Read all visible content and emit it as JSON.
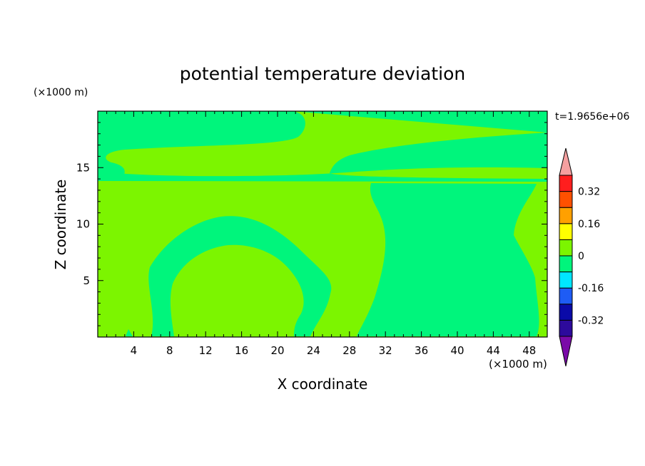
{
  "chart_data": {
    "type": "heatmap",
    "title": "potential temperature deviation",
    "xlabel": "X coordinate",
    "ylabel": "Z coordinate",
    "x_unit": "(×1000 m)",
    "y_unit": "(×1000 m)",
    "time_label": "t=1.9656e+06",
    "xlim": [
      0,
      50
    ],
    "ylim": [
      0,
      20
    ],
    "x_ticks": [
      "4",
      "8",
      "12",
      "16",
      "20",
      "24",
      "28",
      "32",
      "36",
      "40",
      "44",
      "48"
    ],
    "y_ticks": [
      "5",
      "10",
      "15"
    ],
    "x_tick_values": [
      4,
      8,
      12,
      16,
      20,
      24,
      28,
      32,
      36,
      40,
      44,
      48
    ],
    "y_tick_values": [
      5,
      10,
      15
    ],
    "colorbar": {
      "levels": [
        -0.4,
        -0.32,
        -0.24,
        -0.16,
        -0.08,
        0,
        0.08,
        0.16,
        0.24,
        0.32,
        0.4
      ],
      "tick_labels": [
        "0.32",
        "0.16",
        "0",
        "-0.16",
        "-0.32"
      ],
      "tick_values": [
        0.32,
        0.16,
        0,
        -0.16,
        -0.32
      ],
      "colors_low_to_high": [
        "#2d0a9c",
        "#0a0aa8",
        "#1e5cf5",
        "#00e6ff",
        "#00f57c",
        "#7cf500",
        "#ffff00",
        "#ffa000",
        "#ff5000",
        "#ff1e1e"
      ],
      "under_color": "#7a0aa8",
      "over_color": "#f5a0a0"
    },
    "regions": {
      "background_value_range": [
        0,
        0.08
      ],
      "background_color": "#7cf500",
      "negative_region_range": [
        -0.08,
        0
      ],
      "negative_region_color": "#00f57c"
    }
  }
}
